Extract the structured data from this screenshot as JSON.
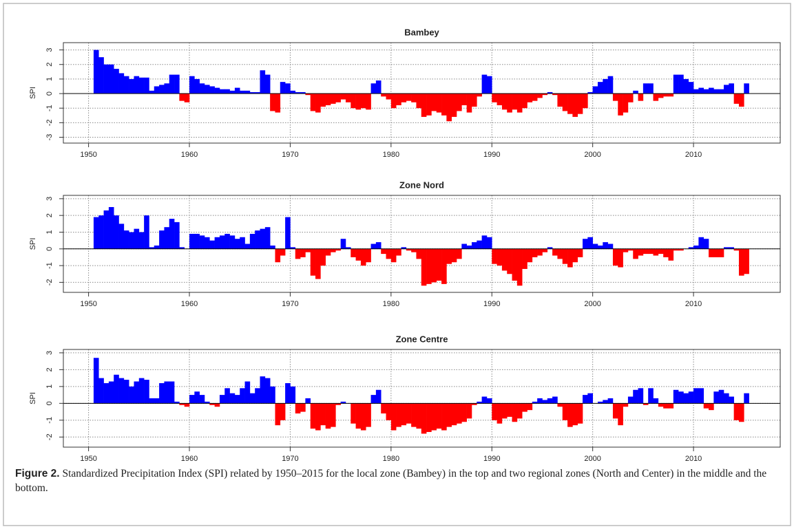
{
  "chart_data": [
    {
      "type": "bar",
      "title": "Bambey",
      "ylabel": "SPI",
      "x": [
        1950.5,
        1951,
        1951.5,
        1952,
        1952.5,
        1953,
        1953.5,
        1954,
        1954.5,
        1955,
        1955.5,
        1956,
        1956.5,
        1957,
        1957.5,
        1958,
        1958.5,
        1959,
        1959.5,
        1960,
        1960.5,
        1961,
        1961.5,
        1962,
        1962.5,
        1963,
        1963.5,
        1964,
        1964.5,
        1965,
        1965.5,
        1966,
        1966.5,
        1967,
        1967.5,
        1968,
        1968.5,
        1969,
        1969.5,
        1970,
        1970.5,
        1971,
        1971.5,
        1972,
        1972.5,
        1973,
        1973.5,
        1974,
        1974.5,
        1975,
        1975.5,
        1976,
        1976.5,
        1977,
        1977.5,
        1978,
        1978.5,
        1979,
        1979.5,
        1980,
        1980.5,
        1981,
        1981.5,
        1982,
        1982.5,
        1983,
        1983.5,
        1984,
        1984.5,
        1985,
        1985.5,
        1986,
        1986.5,
        1987,
        1987.5,
        1988,
        1988.5,
        1989,
        1989.5,
        1990,
        1990.5,
        1991,
        1991.5,
        1992,
        1992.5,
        1993,
        1993.5,
        1994,
        1994.5,
        1995,
        1995.5,
        1996,
        1996.5,
        1997,
        1997.5,
        1998,
        1998.5,
        1999,
        1999.5,
        2000,
        2000.5,
        2001,
        2001.5,
        2002,
        2002.5,
        2003,
        2003.5,
        2004,
        2004.5,
        2005,
        2005.5,
        2006,
        2006.5,
        2007,
        2007.5,
        2008,
        2008.5,
        2009,
        2009.5,
        2010,
        2010.5,
        2011,
        2011.5,
        2012,
        2012.5,
        2013,
        2013.5,
        2014,
        2014.5,
        2015
      ],
      "values": [
        3.0,
        2.5,
        2.0,
        2.0,
        1.7,
        1.4,
        1.2,
        1.0,
        1.2,
        1.1,
        1.1,
        0.2,
        0.5,
        0.6,
        0.7,
        1.3,
        1.3,
        -0.5,
        -0.6,
        1.2,
        1.0,
        0.7,
        0.6,
        0.5,
        0.4,
        0.3,
        0.3,
        0.2,
        0.4,
        0.2,
        0.2,
        0.1,
        0.1,
        1.6,
        1.3,
        -1.2,
        -1.3,
        0.8,
        0.7,
        0.2,
        0.1,
        0.1,
        -0.1,
        -1.2,
        -1.3,
        -0.9,
        -0.8,
        -0.7,
        -0.6,
        -0.4,
        -0.6,
        -1.0,
        -1.1,
        -1.0,
        -1.1,
        0.7,
        0.9,
        -0.2,
        -0.4,
        -1.0,
        -0.8,
        -0.6,
        -0.5,
        -0.6,
        -1.0,
        -1.6,
        -1.5,
        -1.2,
        -1.3,
        -1.5,
        -1.9,
        -1.6,
        -1.2,
        -0.8,
        -1.3,
        -0.9,
        -0.2,
        1.3,
        1.2,
        -0.6,
        -0.8,
        -1.1,
        -1.3,
        -1.1,
        -1.3,
        -1.0,
        -0.6,
        -0.5,
        -0.3,
        -0.1,
        0.1,
        -0.1,
        -0.9,
        -1.2,
        -1.4,
        -1.6,
        -1.4,
        -1.0,
        0.1,
        0.5,
        0.8,
        1.0,
        1.2,
        -0.5,
        -1.5,
        -1.3,
        -0.6,
        0.2,
        -0.5,
        0.7,
        0.7,
        -0.5,
        -0.3,
        -0.2,
        -0.2,
        1.3,
        1.3,
        1.0,
        0.8,
        0.3,
        0.4,
        0.3,
        0.4,
        0.3,
        0.3,
        0.6,
        0.7,
        -0.7,
        -0.9,
        0.7
      ],
      "positive_color": "#0000ff",
      "negative_color": "#ff0000",
      "xlim": [
        1947.5,
        2018.6
      ],
      "xticks": [
        1950,
        1960,
        1970,
        1980,
        1990,
        2000,
        2010
      ],
      "ylim": [
        -3.4,
        3.5
      ],
      "yticks": [
        -3,
        -2,
        -1,
        0,
        1,
        2,
        3
      ],
      "grid": true
    },
    {
      "type": "bar",
      "title": "Zone Nord",
      "ylabel": "SPI",
      "x": [
        1950.5,
        1951,
        1951.5,
        1952,
        1952.5,
        1953,
        1953.5,
        1954,
        1954.5,
        1955,
        1955.5,
        1956,
        1956.5,
        1957,
        1957.5,
        1958,
        1958.5,
        1959,
        1959.5,
        1960,
        1960.5,
        1961,
        1961.5,
        1962,
        1962.5,
        1963,
        1963.5,
        1964,
        1964.5,
        1965,
        1965.5,
        1966,
        1966.5,
        1967,
        1967.5,
        1968,
        1968.5,
        1969,
        1969.5,
        1970,
        1970.5,
        1971,
        1971.5,
        1972,
        1972.5,
        1973,
        1973.5,
        1974,
        1974.5,
        1975,
        1975.5,
        1976,
        1976.5,
        1977,
        1977.5,
        1978,
        1978.5,
        1979,
        1979.5,
        1980,
        1980.5,
        1981,
        1981.5,
        1982,
        1982.5,
        1983,
        1983.5,
        1984,
        1984.5,
        1985,
        1985.5,
        1986,
        1986.5,
        1987,
        1987.5,
        1988,
        1988.5,
        1989,
        1989.5,
        1990,
        1990.5,
        1991,
        1991.5,
        1992,
        1992.5,
        1993,
        1993.5,
        1994,
        1994.5,
        1995,
        1995.5,
        1996,
        1996.5,
        1997,
        1997.5,
        1998,
        1998.5,
        1999,
        1999.5,
        2000,
        2000.5,
        2001,
        2001.5,
        2002,
        2002.5,
        2003,
        2003.5,
        2004,
        2004.5,
        2005,
        2005.5,
        2006,
        2006.5,
        2007,
        2007.5,
        2008,
        2008.5,
        2009,
        2009.5,
        2010,
        2010.5,
        2011,
        2011.5,
        2012,
        2012.5,
        2013,
        2013.5,
        2014,
        2014.5,
        2015
      ],
      "values": [
        1.9,
        2.0,
        2.3,
        2.5,
        2.0,
        1.5,
        1.1,
        1.0,
        1.2,
        1.0,
        2.0,
        0.1,
        0.2,
        1.1,
        1.3,
        1.8,
        1.6,
        0.1,
        0.0,
        0.9,
        0.9,
        0.8,
        0.7,
        0.5,
        0.7,
        0.8,
        0.9,
        0.8,
        0.6,
        0.7,
        0.3,
        0.9,
        1.1,
        1.2,
        1.3,
        0.2,
        -0.8,
        -0.4,
        1.9,
        0.1,
        -0.6,
        -0.5,
        -0.2,
        -1.6,
        -1.8,
        -1.0,
        -0.4,
        -0.2,
        -0.1,
        0.6,
        0.1,
        -0.5,
        -0.7,
        -1.0,
        -0.8,
        0.3,
        0.4,
        -0.3,
        -0.6,
        -0.8,
        -0.4,
        0.1,
        -0.1,
        -0.2,
        -0.6,
        -2.2,
        -2.1,
        -2.0,
        -1.9,
        -2.1,
        -0.9,
        -0.8,
        -0.6,
        0.3,
        0.2,
        0.4,
        0.5,
        0.8,
        0.7,
        -0.9,
        -1.0,
        -1.3,
        -1.5,
        -1.9,
        -2.2,
        -1.2,
        -0.8,
        -0.5,
        -0.4,
        -0.2,
        0.1,
        -0.4,
        -0.6,
        -0.9,
        -1.1,
        -0.8,
        -0.5,
        0.6,
        0.7,
        0.3,
        0.2,
        0.4,
        0.3,
        -1.0,
        -1.1,
        -0.2,
        -0.1,
        -0.6,
        -0.4,
        -0.3,
        -0.3,
        -0.4,
        -0.3,
        -0.5,
        -0.7,
        -0.1,
        -0.1,
        0.0,
        0.1,
        0.2,
        0.7,
        0.6,
        -0.5,
        -0.5,
        -0.5,
        0.1,
        0.1,
        -0.1,
        -1.6,
        -1.5
      ],
      "positive_color": "#0000ff",
      "negative_color": "#ff0000",
      "xlim": [
        1947.5,
        2018.6
      ],
      "xticks": [
        1950,
        1960,
        1970,
        1980,
        1990,
        2000,
        2010
      ],
      "ylim": [
        -2.6,
        3.2
      ],
      "yticks": [
        -2,
        -1,
        0,
        1,
        2,
        3
      ],
      "grid": true
    },
    {
      "type": "bar",
      "title": "Zone Centre",
      "ylabel": "SPI",
      "x": [
        1950.5,
        1951,
        1951.5,
        1952,
        1952.5,
        1953,
        1953.5,
        1954,
        1954.5,
        1955,
        1955.5,
        1956,
        1956.5,
        1957,
        1957.5,
        1958,
        1958.5,
        1959,
        1959.5,
        1960,
        1960.5,
        1961,
        1961.5,
        1962,
        1962.5,
        1963,
        1963.5,
        1964,
        1964.5,
        1965,
        1965.5,
        1966,
        1966.5,
        1967,
        1967.5,
        1968,
        1968.5,
        1969,
        1969.5,
        1970,
        1970.5,
        1971,
        1971.5,
        1972,
        1972.5,
        1973,
        1973.5,
        1974,
        1974.5,
        1975,
        1975.5,
        1976,
        1976.5,
        1977,
        1977.5,
        1978,
        1978.5,
        1979,
        1979.5,
        1980,
        1980.5,
        1981,
        1981.5,
        1982,
        1982.5,
        1983,
        1983.5,
        1984,
        1984.5,
        1985,
        1985.5,
        1986,
        1986.5,
        1987,
        1987.5,
        1988,
        1988.5,
        1989,
        1989.5,
        1990,
        1990.5,
        1991,
        1991.5,
        1992,
        1992.5,
        1993,
        1993.5,
        1994,
        1994.5,
        1995,
        1995.5,
        1996,
        1996.5,
        1997,
        1997.5,
        1998,
        1998.5,
        1999,
        1999.5,
        2000,
        2000.5,
        2001,
        2001.5,
        2002,
        2002.5,
        2003,
        2003.5,
        2004,
        2004.5,
        2005,
        2005.5,
        2006,
        2006.5,
        2007,
        2007.5,
        2008,
        2008.5,
        2009,
        2009.5,
        2010,
        2010.5,
        2011,
        2011.5,
        2012,
        2012.5,
        2013,
        2013.5,
        2014,
        2014.5,
        2015
      ],
      "values": [
        2.7,
        1.5,
        1.2,
        1.3,
        1.7,
        1.5,
        1.4,
        1.0,
        1.3,
        1.5,
        1.4,
        0.3,
        0.3,
        1.2,
        1.3,
        1.3,
        0.1,
        -0.1,
        -0.2,
        0.5,
        0.7,
        0.5,
        0.1,
        -0.1,
        -0.2,
        0.5,
        0.9,
        0.6,
        0.5,
        0.9,
        1.3,
        0.6,
        0.9,
        1.6,
        1.5,
        1.0,
        -1.3,
        -1.0,
        1.2,
        1.0,
        -0.6,
        -0.5,
        0.3,
        -1.5,
        -1.6,
        -1.3,
        -1.5,
        -1.4,
        -0.1,
        0.1,
        0.0,
        -1.2,
        -1.5,
        -1.6,
        -1.4,
        0.5,
        0.8,
        -0.6,
        -1.0,
        -1.6,
        -1.4,
        -1.3,
        -1.2,
        -1.4,
        -1.5,
        -1.8,
        -1.7,
        -1.6,
        -1.5,
        -1.6,
        -1.4,
        -1.3,
        -1.2,
        -1.1,
        -0.9,
        -0.1,
        0.1,
        0.4,
        0.3,
        -1.0,
        -1.2,
        -0.9,
        -0.8,
        -1.1,
        -0.9,
        -0.5,
        -0.4,
        0.1,
        0.3,
        0.2,
        0.3,
        0.4,
        -0.2,
        -1.0,
        -1.4,
        -1.3,
        -1.2,
        0.5,
        0.6,
        0.0,
        0.1,
        0.2,
        0.3,
        -0.9,
        -1.3,
        -0.2,
        0.4,
        0.8,
        0.9,
        -0.1,
        0.9,
        0.3,
        -0.2,
        -0.3,
        -0.3,
        0.8,
        0.7,
        0.6,
        0.7,
        0.9,
        0.9,
        -0.3,
        -0.4,
        0.7,
        0.8,
        0.6,
        0.4,
        -1.0,
        -1.1,
        0.6
      ],
      "positive_color": "#0000ff",
      "negative_color": "#ff0000",
      "xlim": [
        1947.5,
        2018.6
      ],
      "xticks": [
        1950,
        1960,
        1970,
        1980,
        1990,
        2000,
        2010
      ],
      "ylim": [
        -2.6,
        3.2
      ],
      "yticks": [
        -2,
        -1,
        0,
        1,
        2,
        3
      ],
      "grid": true
    }
  ],
  "caption": {
    "label": "Figure 2.",
    "text": "Standardized Precipitation Index (SPI) related by 1950–2015 for the local zone (Bambey) in the top and two regional zones (North and Center) in the middle and the bottom."
  }
}
